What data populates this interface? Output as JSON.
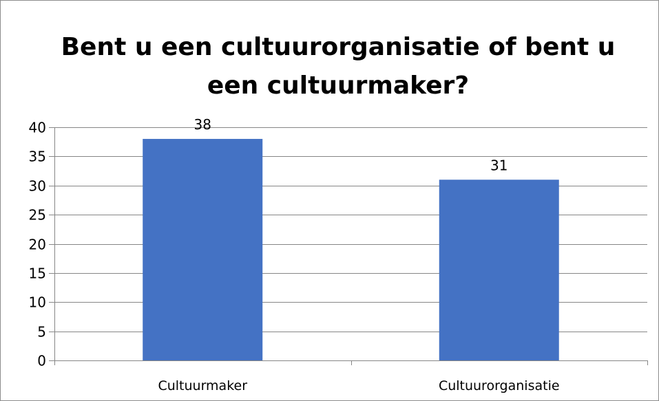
{
  "chart_data": {
    "type": "bar",
    "title": "Bent u een cultuurorganisatie of bent u een cultuurmaker?",
    "categories": [
      "Cultuurmaker",
      "Cultuurorganisatie"
    ],
    "values": [
      38,
      31
    ],
    "data_labels": [
      "38",
      "31"
    ],
    "ylim": [
      0,
      40
    ],
    "yticks": [
      0,
      5,
      10,
      15,
      20,
      25,
      30,
      35,
      40
    ],
    "ytick_labels": [
      "0",
      "5",
      "10",
      "15",
      "20",
      "25",
      "30",
      "35",
      "40"
    ],
    "grid": true,
    "legend": "none",
    "bar_color": "#4472C4"
  }
}
